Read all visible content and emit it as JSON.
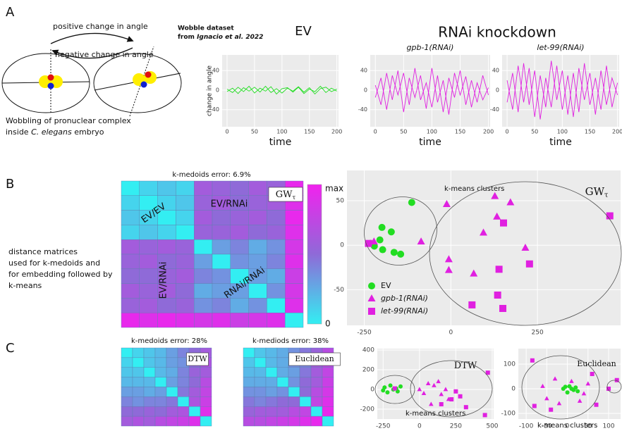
{
  "panel_labels": [
    "A",
    "B",
    "C"
  ],
  "diagram": {
    "positive": "positive change in angle",
    "negative": "negative change in angle",
    "caption_line1": "Wobbling of pronuclear complex",
    "caption_line2_start": "inside ",
    "caption_line2_species": "C. elegans",
    "caption_line2_end": " embryo"
  },
  "dataset": {
    "title": "Wobble dataset",
    "from": "from ",
    "source": "Ignacio et al. 2022"
  },
  "rnai_title": "RNAi knockdown",
  "description": [
    "distance matrices",
    "used for k-medoids and",
    "for embedding followed by",
    "k-means"
  ],
  "chart_data": [
    {
      "type": "line",
      "title": "EV",
      "xlabel": "time",
      "ylabel": "change in angle",
      "x": [
        0,
        10,
        20,
        30,
        40,
        50,
        60,
        70,
        80,
        90,
        100,
        110,
        120,
        130,
        140,
        150,
        160,
        170,
        180,
        190,
        200
      ],
      "series": [
        {
          "color": "#22dd22",
          "values": [
            2,
            -5,
            6,
            -3,
            8,
            -6,
            4,
            -2,
            7,
            -8,
            3,
            5,
            -4,
            6,
            -7,
            2,
            -3,
            8,
            -5,
            4,
            -2
          ]
        },
        {
          "color": "#22dd22",
          "values": [
            -3,
            4,
            -7,
            5,
            -2,
            6,
            -4,
            8,
            -5,
            3,
            -6,
            4,
            -2,
            7,
            -4,
            5,
            -8,
            3,
            6,
            -3,
            2
          ]
        }
      ],
      "xlim": [
        -9,
        203
      ],
      "ylim": [
        -75,
        72
      ],
      "xticks": [
        0,
        50,
        100,
        150,
        200
      ],
      "yticks": [
        -40,
        0,
        40
      ]
    },
    {
      "type": "line",
      "title": "gpb-1(RNAi)",
      "xlabel": "time",
      "x": [
        0,
        10,
        20,
        30,
        40,
        50,
        60,
        70,
        80,
        90,
        100,
        110,
        120,
        130,
        140,
        150,
        160,
        170,
        180,
        190,
        200
      ],
      "series": [
        {
          "color": "#e020e0",
          "values": [
            10,
            -30,
            35,
            -20,
            40,
            -45,
            25,
            -15,
            30,
            -38,
            45,
            -25,
            20,
            -50,
            35,
            -10,
            28,
            -35,
            15,
            -20,
            5
          ]
        },
        {
          "color": "#e020e0",
          "values": [
            -15,
            25,
            -40,
            30,
            -10,
            35,
            -30,
            45,
            -20,
            15,
            -35,
            30,
            -45,
            25,
            -15,
            40,
            -30,
            20,
            -25,
            30,
            -10
          ]
        }
      ],
      "xlim": [
        -9,
        203
      ],
      "ylim": [
        -75,
        72
      ],
      "xticks": [
        0,
        50,
        100,
        150,
        200
      ],
      "yticks": [
        -40,
        0,
        40
      ]
    },
    {
      "type": "line",
      "title": "let-99(RNAi)",
      "xlabel": "time",
      "x": [
        0,
        10,
        20,
        30,
        40,
        50,
        60,
        70,
        80,
        90,
        100,
        110,
        120,
        130,
        140,
        150,
        160,
        170,
        180,
        190,
        200
      ],
      "series": [
        {
          "color": "#e020e0",
          "values": [
            20,
            -40,
            50,
            -25,
            45,
            -55,
            30,
            -35,
            60,
            -20,
            40,
            -50,
            35,
            -45,
            55,
            -30,
            25,
            -40,
            50,
            -35,
            15
          ]
        },
        {
          "color": "#e020e0",
          "values": [
            -25,
            35,
            -45,
            55,
            -30,
            40,
            -60,
            25,
            -35,
            50,
            -40,
            30,
            -55,
            45,
            -20,
            35,
            -50,
            40,
            -30,
            25,
            -10
          ]
        }
      ],
      "xlim": [
        -9,
        203
      ],
      "ylim": [
        -75,
        72
      ],
      "xticks": [
        0,
        50,
        100,
        150,
        200
      ],
      "yticks": [
        -40,
        0,
        40
      ]
    },
    {
      "type": "heatmap",
      "title": "k-medoids error: 6.9%",
      "method": "GW",
      "method_sub": "τ",
      "annotations": [
        "EV/EV",
        "EV/RNAi",
        "EV/RNAi",
        "RNAi/RNAi"
      ],
      "colorbar_labels": [
        "max",
        "0"
      ],
      "colormap": [
        "#33eef2",
        "#8f6ad8",
        "#f222ee"
      ],
      "matrix": [
        [
          0,
          0.1,
          0.15,
          0.1,
          0.6,
          0.55,
          0.5,
          0.6,
          0.55,
          0.95
        ],
        [
          0.1,
          0,
          0.1,
          0.15,
          0.55,
          0.6,
          0.5,
          0.55,
          0.6,
          0.9
        ],
        [
          0.15,
          0.1,
          0,
          0.1,
          0.6,
          0.5,
          0.55,
          0.6,
          0.5,
          0.95
        ],
        [
          0.1,
          0.15,
          0.1,
          0,
          0.55,
          0.55,
          0.6,
          0.5,
          0.55,
          0.9
        ],
        [
          0.6,
          0.55,
          0.6,
          0.55,
          0,
          0.3,
          0.4,
          0.25,
          0.35,
          0.85
        ],
        [
          0.55,
          0.6,
          0.5,
          0.55,
          0.3,
          0,
          0.35,
          0.3,
          0.4,
          0.9
        ],
        [
          0.5,
          0.5,
          0.55,
          0.6,
          0.4,
          0.35,
          0,
          0.3,
          0.25,
          0.8
        ],
        [
          0.6,
          0.55,
          0.6,
          0.5,
          0.25,
          0.3,
          0.3,
          0,
          0.35,
          0.85
        ],
        [
          0.55,
          0.6,
          0.5,
          0.55,
          0.35,
          0.4,
          0.25,
          0.35,
          0,
          0.9
        ],
        [
          0.95,
          0.9,
          0.95,
          0.9,
          0.85,
          0.9,
          0.8,
          0.85,
          0.9,
          0
        ]
      ]
    },
    {
      "type": "scatter",
      "annotation": "k-means clusters",
      "method": "GW",
      "method_sub": "τ",
      "xlim": [
        -300,
        490
      ],
      "ylim": [
        -90,
        84
      ],
      "xticks": [
        -250,
        0,
        250
      ],
      "yticks": [
        -50,
        0,
        50
      ],
      "grid": true,
      "series": [
        {
          "name": "EV",
          "color": "#22dd22",
          "marker": "circle",
          "x": [
            -113,
            -199,
            -232,
            -221,
            -205,
            -197,
            -172,
            -164,
            -145
          ],
          "y": [
            48,
            20,
            2,
            -1,
            6,
            -5,
            15,
            -8,
            -10
          ]
        },
        {
          "name": "gpb-1(RNAi)",
          "color": "#e020e0",
          "marker": "triangle",
          "x": [
            -222,
            -86,
            -12,
            127,
            172,
            133,
            94,
            215,
            -6,
            -6,
            66
          ],
          "y": [
            4,
            4,
            46,
            55,
            48,
            32,
            14,
            -3,
            -16,
            -28,
            -32
          ]
        },
        {
          "name": "let-99(RNAi)",
          "color": "#e020e0",
          "marker": "square",
          "x": [
            459,
            152,
            139,
            227,
            61,
            135,
            150,
            -238
          ],
          "y": [
            33,
            25,
            -27,
            -21,
            -67,
            -56,
            -71,
            2
          ]
        }
      ]
    },
    {
      "type": "heatmap",
      "title": "k-medoids error: 28%",
      "method": "DTW",
      "colormap": [
        "#33eef2",
        "#8f6ad8",
        "#f222ee"
      ],
      "matrix": [
        [
          0,
          0.1,
          0.15,
          0.2,
          0.3,
          0.4,
          0.5,
          0.6
        ],
        [
          0.1,
          0,
          0.15,
          0.2,
          0.3,
          0.35,
          0.5,
          0.65
        ],
        [
          0.15,
          0.15,
          0,
          0.2,
          0.25,
          0.4,
          0.55,
          0.6
        ],
        [
          0.2,
          0.2,
          0.2,
          0,
          0.3,
          0.4,
          0.5,
          0.7
        ],
        [
          0.3,
          0.3,
          0.25,
          0.3,
          0,
          0.45,
          0.6,
          0.75
        ],
        [
          0.4,
          0.35,
          0.4,
          0.4,
          0.45,
          0,
          0.65,
          0.8
        ],
        [
          0.5,
          0.5,
          0.55,
          0.5,
          0.6,
          0.65,
          0,
          0.9
        ],
        [
          0.6,
          0.65,
          0.6,
          0.7,
          0.75,
          0.8,
          0.9,
          0
        ]
      ]
    },
    {
      "type": "heatmap",
      "title": "k-mediods error: 38%",
      "method": "Euclidean",
      "colormap": [
        "#33eef2",
        "#8f6ad8",
        "#f222ee"
      ],
      "matrix": [
        [
          0,
          0.15,
          0.2,
          0.25,
          0.35,
          0.45,
          0.55,
          0.7
        ],
        [
          0.15,
          0,
          0.2,
          0.25,
          0.35,
          0.4,
          0.6,
          0.7
        ],
        [
          0.2,
          0.2,
          0,
          0.25,
          0.3,
          0.45,
          0.6,
          0.75
        ],
        [
          0.25,
          0.25,
          0.25,
          0,
          0.35,
          0.5,
          0.6,
          0.8
        ],
        [
          0.35,
          0.35,
          0.3,
          0.35,
          0,
          0.5,
          0.7,
          0.85
        ],
        [
          0.45,
          0.4,
          0.45,
          0.5,
          0.5,
          0,
          0.75,
          0.9
        ],
        [
          0.55,
          0.6,
          0.6,
          0.6,
          0.7,
          0.75,
          0,
          0.95
        ],
        [
          0.7,
          0.7,
          0.75,
          0.8,
          0.85,
          0.9,
          0.95,
          0
        ]
      ]
    },
    {
      "type": "scatter",
      "annotation": "k-means clusters",
      "method": "DTW",
      "xlim": [
        -290,
        510
      ],
      "ylim": [
        -300,
        414
      ],
      "xticks": [
        -250,
        0,
        250,
        500
      ],
      "yticks": [
        -200,
        0,
        200,
        400
      ],
      "grid": true,
      "series": [
        {
          "color": "#22dd22",
          "marker": "circle",
          "x": [
            -240,
            -220,
            -200,
            -180,
            -160,
            -130,
            -150,
            -250
          ],
          "y": [
            20,
            -30,
            40,
            0,
            10,
            30,
            -20,
            -10
          ]
        },
        {
          "color": "#e020e0",
          "marker": "triangle",
          "x": [
            0,
            30,
            60,
            100,
            130,
            150,
            180,
            200,
            80
          ],
          "y": [
            0,
            -40,
            60,
            40,
            80,
            -50,
            0,
            -100,
            -150
          ]
        },
        {
          "color": "#e020e0",
          "marker": "square",
          "x": [
            -170,
            150,
            220,
            280,
            320,
            450,
            470,
            250
          ],
          "y": [
            10,
            -150,
            -100,
            -70,
            -180,
            -260,
            170,
            -20
          ]
        }
      ]
    },
    {
      "type": "scatter",
      "annotation": "k-means clusters",
      "method": "Euclidean",
      "xlim": [
        -119,
        129
      ],
      "ylim": [
        -123,
        163
      ],
      "xticks": [
        -100,
        -50,
        0,
        50,
        100
      ],
      "yticks": [
        -100,
        0,
        100
      ],
      "grid": true,
      "series": [
        {
          "color": "#22dd22",
          "marker": "circle",
          "x": [
            -10,
            5,
            15,
            20,
            0,
            25,
            -5,
            10
          ],
          "y": [
            0,
            10,
            -5,
            5,
            -15,
            -10,
            8,
            0
          ]
        },
        {
          "color": "#e020e0",
          "marker": "triangle",
          "x": [
            -30,
            10,
            40,
            -50,
            30,
            -20,
            50,
            -60
          ],
          "y": [
            40,
            30,
            -20,
            -40,
            -50,
            -60,
            20,
            10
          ]
        },
        {
          "color": "#e020e0",
          "marker": "square",
          "x": [
            -85,
            -80,
            -40,
            70,
            100,
            120,
            60
          ],
          "y": [
            115,
            -70,
            -85,
            -65,
            0,
            35,
            60
          ]
        }
      ]
    }
  ]
}
